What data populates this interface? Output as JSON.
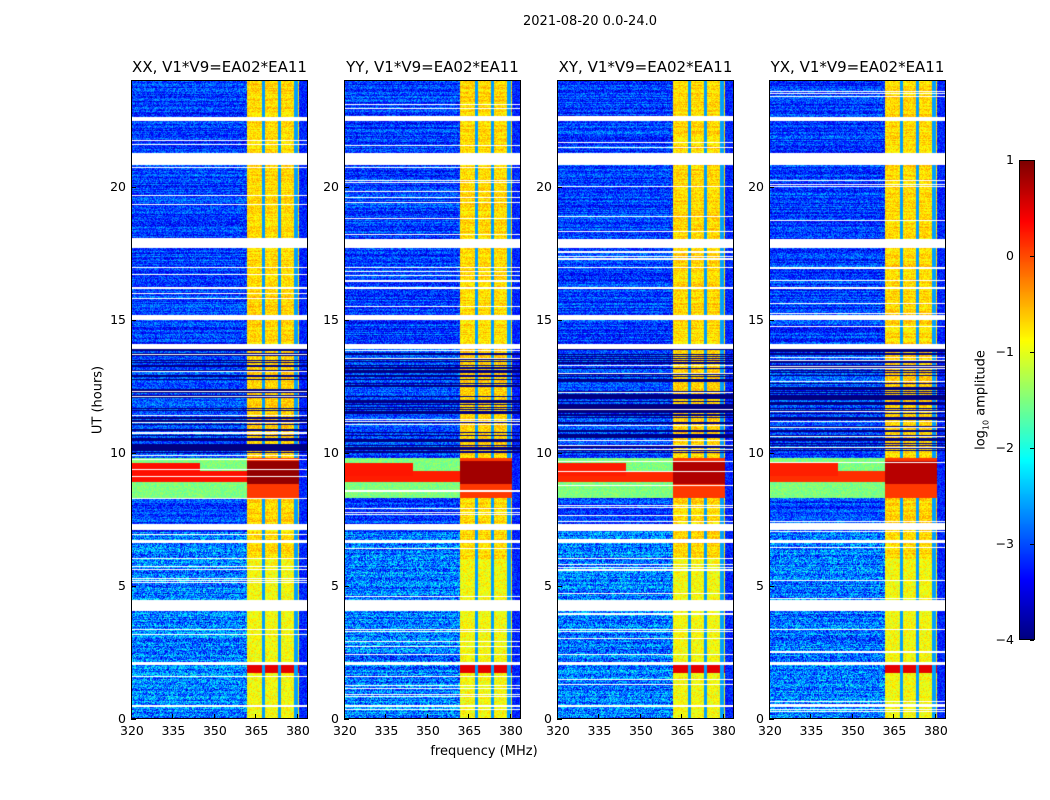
{
  "chart_data": {
    "type": "heatmap",
    "title": "2021-08-20 0.0-24.0",
    "xlabel": "frequency (MHz)",
    "ylabel": "UT (hours)",
    "xlim": [
      320,
      384
    ],
    "ylim": [
      0,
      24
    ],
    "xticks": [
      320,
      335,
      350,
      365,
      380
    ],
    "yticks": [
      0,
      5,
      10,
      15,
      20
    ],
    "panels": [
      {
        "title": "XX, V1*V9=EA02*EA11",
        "strength": 1.0
      },
      {
        "title": "YY, V1*V9=EA02*EA11",
        "strength": 0.9
      },
      {
        "title": "XY, V1*V9=EA02*EA11",
        "strength": 0.8
      },
      {
        "title": "YX, V1*V9=EA02*EA11",
        "strength": 0.75
      }
    ],
    "colorbar": {
      "label_main": "log",
      "label_sub": "10",
      "label_rest": " amplitude",
      "colormap": "jet",
      "range": [
        -4,
        1
      ],
      "ticks": [
        "1",
        "0",
        "−1",
        "−2",
        "−3",
        "−4"
      ],
      "tick_values": [
        1,
        0,
        -1,
        -2,
        -3,
        -4
      ]
    },
    "features": {
      "bright_band_mhz": [
        362,
        381
      ],
      "subband_edges_mhz": [
        368,
        374,
        380
      ],
      "flagged_hours": [
        [
          22.5,
          22.65
        ],
        [
          20.85,
          21.3
        ],
        [
          17.7,
          18.05
        ],
        [
          16.95,
          17.0
        ],
        [
          16.15,
          16.25
        ],
        [
          15.0,
          15.2
        ],
        [
          13.9,
          14.1
        ],
        [
          7.1,
          7.3
        ],
        [
          6.6,
          6.7
        ],
        [
          4.05,
          4.45
        ],
        [
          3.3,
          3.35
        ],
        [
          2.0,
          2.1
        ],
        [
          0.4,
          0.5
        ]
      ],
      "strong_rfi_hours": [
        8.3,
        9.8
      ],
      "dark_hours": [
        10.0,
        14.0
      ]
    }
  }
}
